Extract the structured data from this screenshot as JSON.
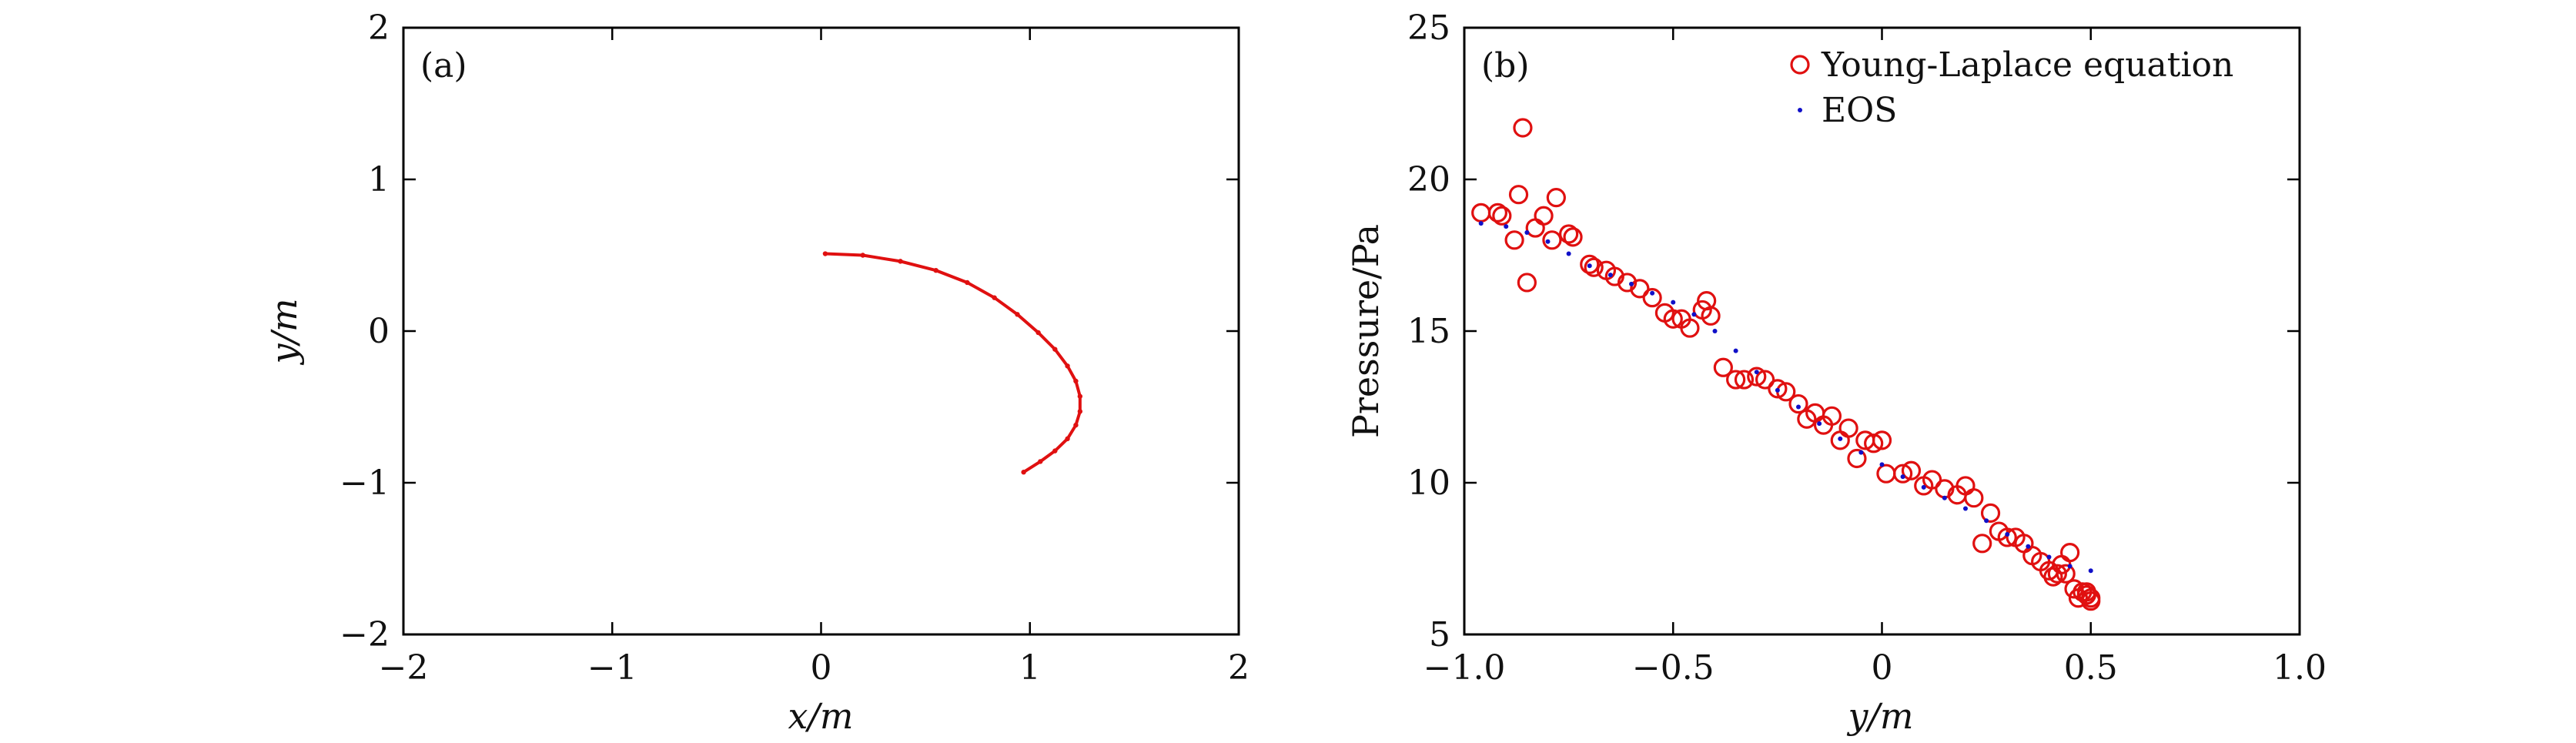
{
  "colors": {
    "curve": "#e01010",
    "eos": "#1010c8",
    "axis": "#000000"
  },
  "chart_data": [
    {
      "type": "scatter",
      "panel_label": "(a)",
      "xlabel": "x/m",
      "ylabel": "y/m",
      "xlim": [
        -2,
        2
      ],
      "ylim": [
        -2,
        2
      ],
      "xticks": [
        -2,
        -1,
        0,
        1,
        2
      ],
      "yticks": [
        -2,
        -1,
        0,
        1,
        2
      ],
      "xtick_labels": [
        "−2",
        "−1",
        "0",
        "1",
        "2"
      ],
      "ytick_labels": [
        "−2",
        "−1",
        "0",
        "1",
        "2"
      ],
      "grid": false,
      "series": [
        {
          "color": "#e01010",
          "x": [
            0.02,
            0.2,
            0.38,
            0.55,
            0.7,
            0.83,
            0.94,
            1.04,
            1.12,
            1.18,
            1.22,
            1.24,
            1.24,
            1.22,
            1.18,
            1.12,
            1.05,
            0.97
          ],
          "y": [
            0.51,
            0.5,
            0.46,
            0.4,
            0.32,
            0.22,
            0.11,
            -0.01,
            -0.12,
            -0.23,
            -0.33,
            -0.43,
            -0.53,
            -0.62,
            -0.71,
            -0.79,
            -0.86,
            -0.93
          ]
        }
      ]
    },
    {
      "type": "scatter",
      "panel_label": "(b)",
      "xlabel": "y/m",
      "ylabel": "Pressure/Pa",
      "xlim": [
        -1.0,
        1.0
      ],
      "ylim": [
        5,
        25
      ],
      "xticks": [
        -1.0,
        -0.5,
        0,
        0.5,
        1.0
      ],
      "yticks": [
        5,
        10,
        15,
        20,
        25
      ],
      "xtick_labels": [
        "−1.0",
        "−0.5",
        "0",
        "0.5",
        "1.0"
      ],
      "ytick_labels": [
        "5",
        "10",
        "15",
        "20",
        "25"
      ],
      "grid": false,
      "legend": "top-right",
      "series": [
        {
          "name": "Young-Laplace equation",
          "marker": "open-circle",
          "color": "#e01010",
          "x": [
            -0.96,
            -0.92,
            -0.91,
            -0.88,
            -0.87,
            -0.86,
            -0.85,
            -0.83,
            -0.81,
            -0.79,
            -0.78,
            -0.75,
            -0.74,
            -0.7,
            -0.69,
            -0.66,
            -0.64,
            -0.61,
            -0.58,
            -0.55,
            -0.52,
            -0.5,
            -0.48,
            -0.46,
            -0.43,
            -0.42,
            -0.41,
            -0.38,
            -0.35,
            -0.33,
            -0.3,
            -0.28,
            -0.25,
            -0.23,
            -0.2,
            -0.18,
            -0.16,
            -0.14,
            -0.12,
            -0.1,
            -0.08,
            -0.06,
            -0.04,
            -0.02,
            0.0,
            0.01,
            0.05,
            0.07,
            0.1,
            0.12,
            0.15,
            0.18,
            0.2,
            0.22,
            0.24,
            0.26,
            0.28,
            0.3,
            0.32,
            0.34,
            0.36,
            0.38,
            0.4,
            0.41,
            0.42,
            0.43,
            0.44,
            0.45,
            0.46,
            0.47,
            0.48,
            0.49,
            0.5,
            0.5,
            0.49
          ],
          "y": [
            18.9,
            18.9,
            18.8,
            18.0,
            19.5,
            21.7,
            16.6,
            18.4,
            18.8,
            18.0,
            19.4,
            18.2,
            18.1,
            17.2,
            17.1,
            17.0,
            16.8,
            16.6,
            16.4,
            16.1,
            15.6,
            15.4,
            15.4,
            15.1,
            15.7,
            16.0,
            15.5,
            13.8,
            13.4,
            13.4,
            13.5,
            13.4,
            13.1,
            13.0,
            12.6,
            12.1,
            12.3,
            11.9,
            12.2,
            11.4,
            11.8,
            10.8,
            11.4,
            11.3,
            11.4,
            10.3,
            10.3,
            10.4,
            9.9,
            10.1,
            9.8,
            9.6,
            9.9,
            9.5,
            8.0,
            9.0,
            8.4,
            8.2,
            8.2,
            8.0,
            7.6,
            7.4,
            7.1,
            6.9,
            7.0,
            7.3,
            7.0,
            7.7,
            6.5,
            6.2,
            6.4,
            6.3,
            6.1,
            6.2,
            6.4
          ]
        },
        {
          "name": "EOS",
          "marker": "dot",
          "color": "#1010c8",
          "x": [
            -0.96,
            -0.9,
            -0.85,
            -0.8,
            -0.75,
            -0.7,
            -0.65,
            -0.6,
            -0.55,
            -0.5,
            -0.45,
            -0.4,
            -0.35,
            -0.3,
            -0.25,
            -0.2,
            -0.15,
            -0.1,
            -0.05,
            0.0,
            0.05,
            0.1,
            0.15,
            0.2,
            0.25,
            0.3,
            0.35,
            0.4,
            0.45,
            0.5
          ],
          "y": [
            18.55,
            18.45,
            18.25,
            17.95,
            17.55,
            17.15,
            16.85,
            16.55,
            16.25,
            15.95,
            15.55,
            15.0,
            14.35,
            13.65,
            13.05,
            12.5,
            11.95,
            11.45,
            11.0,
            10.6,
            10.2,
            9.85,
            9.5,
            9.15,
            8.75,
            8.3,
            7.9,
            7.55,
            7.25,
            7.1
          ]
        }
      ]
    }
  ]
}
